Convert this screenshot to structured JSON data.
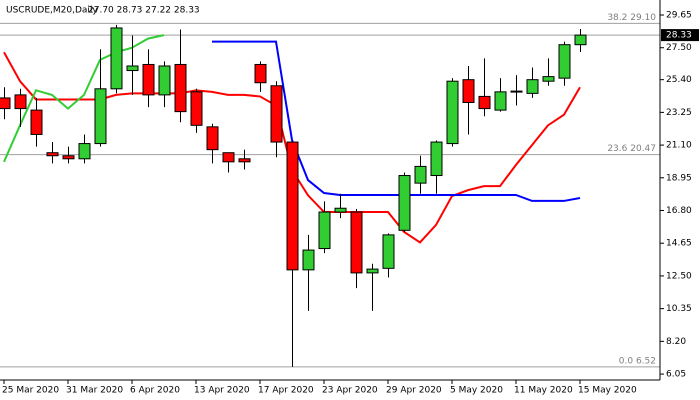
{
  "chart_data": {
    "type": "candlestick",
    "title": "USCRUDE,M20,Daily",
    "ohlc_text": "27.70 28.73 27.22 28.33",
    "categories": [
      "25 Mar 2020",
      null,
      null,
      null,
      "31 Mar 2020",
      null,
      null,
      null,
      "6 Apr 2020",
      null,
      null,
      null,
      "13 Apr 2020",
      null,
      null,
      null,
      "17 Apr 2020",
      null,
      null,
      null,
      "23 Apr 2020",
      null,
      null,
      null,
      "29 Apr 2020",
      null,
      null,
      null,
      "5 May 2020",
      null,
      null,
      null,
      "11 May 2020",
      null,
      null,
      null,
      "15 May 2020"
    ],
    "open": [
      24.2,
      24.4,
      23.4,
      20.6,
      20.4,
      20.2,
      21.2,
      24.8,
      26.0,
      26.4,
      24.4,
      26.4,
      24.6,
      22.3,
      20.6,
      20.2,
      26.4,
      25.0,
      21.3,
      12.9,
      14.3,
      16.7,
      16.7,
      12.7,
      13.0,
      15.5,
      18.6,
      19.1,
      21.2,
      25.4,
      24.3,
      23.4,
      24.6,
      24.5,
      25.3,
      25.5,
      27.7
    ],
    "high": [
      24.9,
      24.8,
      24.2,
      21.3,
      21.0,
      21.8,
      27.4,
      29.0,
      28.3,
      27.4,
      26.6,
      28.7,
      24.8,
      22.5,
      20.6,
      20.8,
      26.6,
      25.3,
      21.3,
      15.2,
      17.4,
      17.9,
      16.9,
      13.3,
      15.3,
      19.3,
      20.4,
      21.4,
      25.5,
      26.3,
      26.8,
      25.5,
      25.7,
      26.2,
      26.8,
      27.9,
      28.73
    ],
    "low": [
      22.8,
      22.3,
      21.0,
      19.9,
      19.9,
      19.9,
      21.0,
      24.5,
      24.4,
      23.6,
      23.6,
      22.6,
      21.9,
      19.9,
      19.3,
      19.5,
      24.6,
      20.3,
      6.52,
      10.2,
      14.0,
      16.3,
      11.7,
      10.2,
      12.4,
      15.4,
      17.9,
      17.9,
      21.0,
      21.8,
      23.0,
      23.3,
      23.7,
      24.2,
      25.0,
      25.0,
      27.22
    ],
    "close": [
      23.5,
      23.5,
      21.8,
      20.4,
      20.2,
      21.2,
      24.8,
      28.8,
      26.3,
      24.4,
      26.3,
      23.3,
      22.4,
      20.8,
      20.0,
      20.0,
      25.2,
      21.3,
      12.9,
      14.2,
      16.7,
      16.95,
      12.7,
      12.95,
      15.2,
      19.1,
      19.7,
      21.3,
      25.3,
      23.9,
      23.5,
      24.6,
      24.65,
      25.4,
      25.6,
      27.7,
      28.33
    ],
    "up_color": "#32cd32",
    "down_color": "#ff0000",
    "series": [
      {
        "color": "#ff0000",
        "values": [
          27.2,
          25.3,
          24.1,
          24.1,
          24.1,
          24.1,
          24.1,
          24.4,
          24.5,
          24.5,
          24.5,
          24.5,
          24.7,
          24.6,
          24.4,
          24.4,
          24.3,
          23.7,
          19.45,
          17.8,
          16.7,
          16.7,
          16.7,
          16.7,
          16.7,
          15.4,
          14.7,
          15.85,
          17.75,
          18.14,
          18.4,
          18.4,
          19.8,
          21.1,
          22.4,
          23.1,
          24.9
        ]
      },
      {
        "color": "#0000ff",
        "values": [
          null,
          null,
          null,
          null,
          null,
          null,
          null,
          null,
          null,
          null,
          null,
          null,
          null,
          27.9,
          27.9,
          27.9,
          27.9,
          27.9,
          21.43,
          18.8,
          17.95,
          17.82,
          17.82,
          17.82,
          17.82,
          17.82,
          17.82,
          17.82,
          17.82,
          17.82,
          17.82,
          17.82,
          17.82,
          17.43,
          17.43,
          17.43,
          17.62
        ]
      },
      {
        "color": "#32cd32",
        "values": [
          20.0,
          22.4,
          24.7,
          24.4,
          23.5,
          24.4,
          26.7,
          27.2,
          27.5,
          28.1,
          28.33,
          null,
          null,
          null,
          null,
          null,
          null,
          null,
          null,
          null,
          null,
          null,
          null,
          null,
          null,
          null,
          null,
          null,
          null,
          null,
          null,
          null,
          null,
          null,
          null,
          null,
          null
        ]
      }
    ],
    "fib_levels": [
      {
        "value": 29.1,
        "label": "38.2 29.10"
      },
      {
        "value": 20.47,
        "label": "23.6 20.47"
      },
      {
        "value": 6.52,
        "label": "0.0 6.52"
      }
    ],
    "last_price": 28.33,
    "ylim": [
      5.66,
      30.44
    ],
    "yticks": [
      29.65,
      {
        "value": 27.5,
        "label": "27.50"
      },
      {
        "value": 25.4,
        "label": "25.40"
      },
      23.25,
      {
        "value": 21.1,
        "label": "21.10"
      },
      18.95,
      {
        "value": 16.8,
        "label": "16.80"
      },
      14.65,
      {
        "value": 12.5,
        "label": "12.50"
      },
      10.35,
      {
        "value": 8.2,
        "label": "8.20"
      },
      6.05
    ]
  }
}
